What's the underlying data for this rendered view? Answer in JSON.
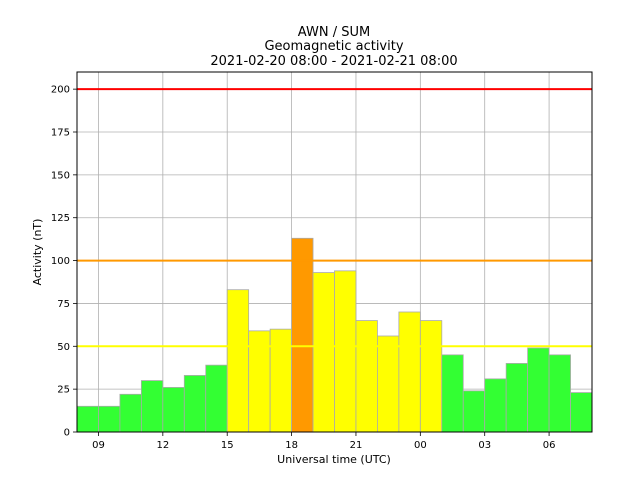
{
  "chart_data": {
    "type": "bar",
    "title_lines": [
      "AWN / SUM",
      "Geomagnetic activity",
      "2021-02-20 08:00 - 2021-02-21 08:00"
    ],
    "xlabel": "Universal time (UTC)",
    "ylabel": "Activity (nT)",
    "ylim": [
      0,
      210
    ],
    "y_ticks": [
      0,
      25,
      50,
      75,
      100,
      125,
      150,
      175,
      200
    ],
    "x_ticks": [
      {
        "hours_from_start": 1,
        "label": "09"
      },
      {
        "hours_from_start": 4,
        "label": "12"
      },
      {
        "hours_from_start": 7,
        "label": "15"
      },
      {
        "hours_from_start": 10,
        "label": "18"
      },
      {
        "hours_from_start": 13,
        "label": "21"
      },
      {
        "hours_from_start": 16,
        "label": "00"
      },
      {
        "hours_from_start": 19,
        "label": "03"
      },
      {
        "hours_from_start": 22,
        "label": "06"
      }
    ],
    "grid": true,
    "categories": [
      "08:00",
      "09:00",
      "10:00",
      "11:00",
      "12:00",
      "13:00",
      "14:00",
      "15:00",
      "16:00",
      "17:00",
      "18:00",
      "19:00",
      "20:00",
      "21:00",
      "22:00",
      "23:00",
      "00:00",
      "01:00",
      "02:00",
      "03:00",
      "04:00",
      "05:00",
      "06:00",
      "07:00"
    ],
    "values": [
      15,
      15,
      22,
      30,
      26,
      33,
      39,
      83,
      59,
      60,
      113,
      93,
      94,
      65,
      56,
      70,
      65,
      45,
      24,
      31,
      40,
      49,
      45,
      23
    ],
    "thresholds": [
      {
        "value": 50,
        "color": "#ffff00"
      },
      {
        "value": 100,
        "color": "#ff9900"
      },
      {
        "value": 200,
        "color": "#ff0000"
      }
    ],
    "bar_colors": {
      "low": "#33ff33",
      "medium": "#ffff00",
      "high": "#ff9900",
      "edge": "#aaaaaa"
    }
  }
}
